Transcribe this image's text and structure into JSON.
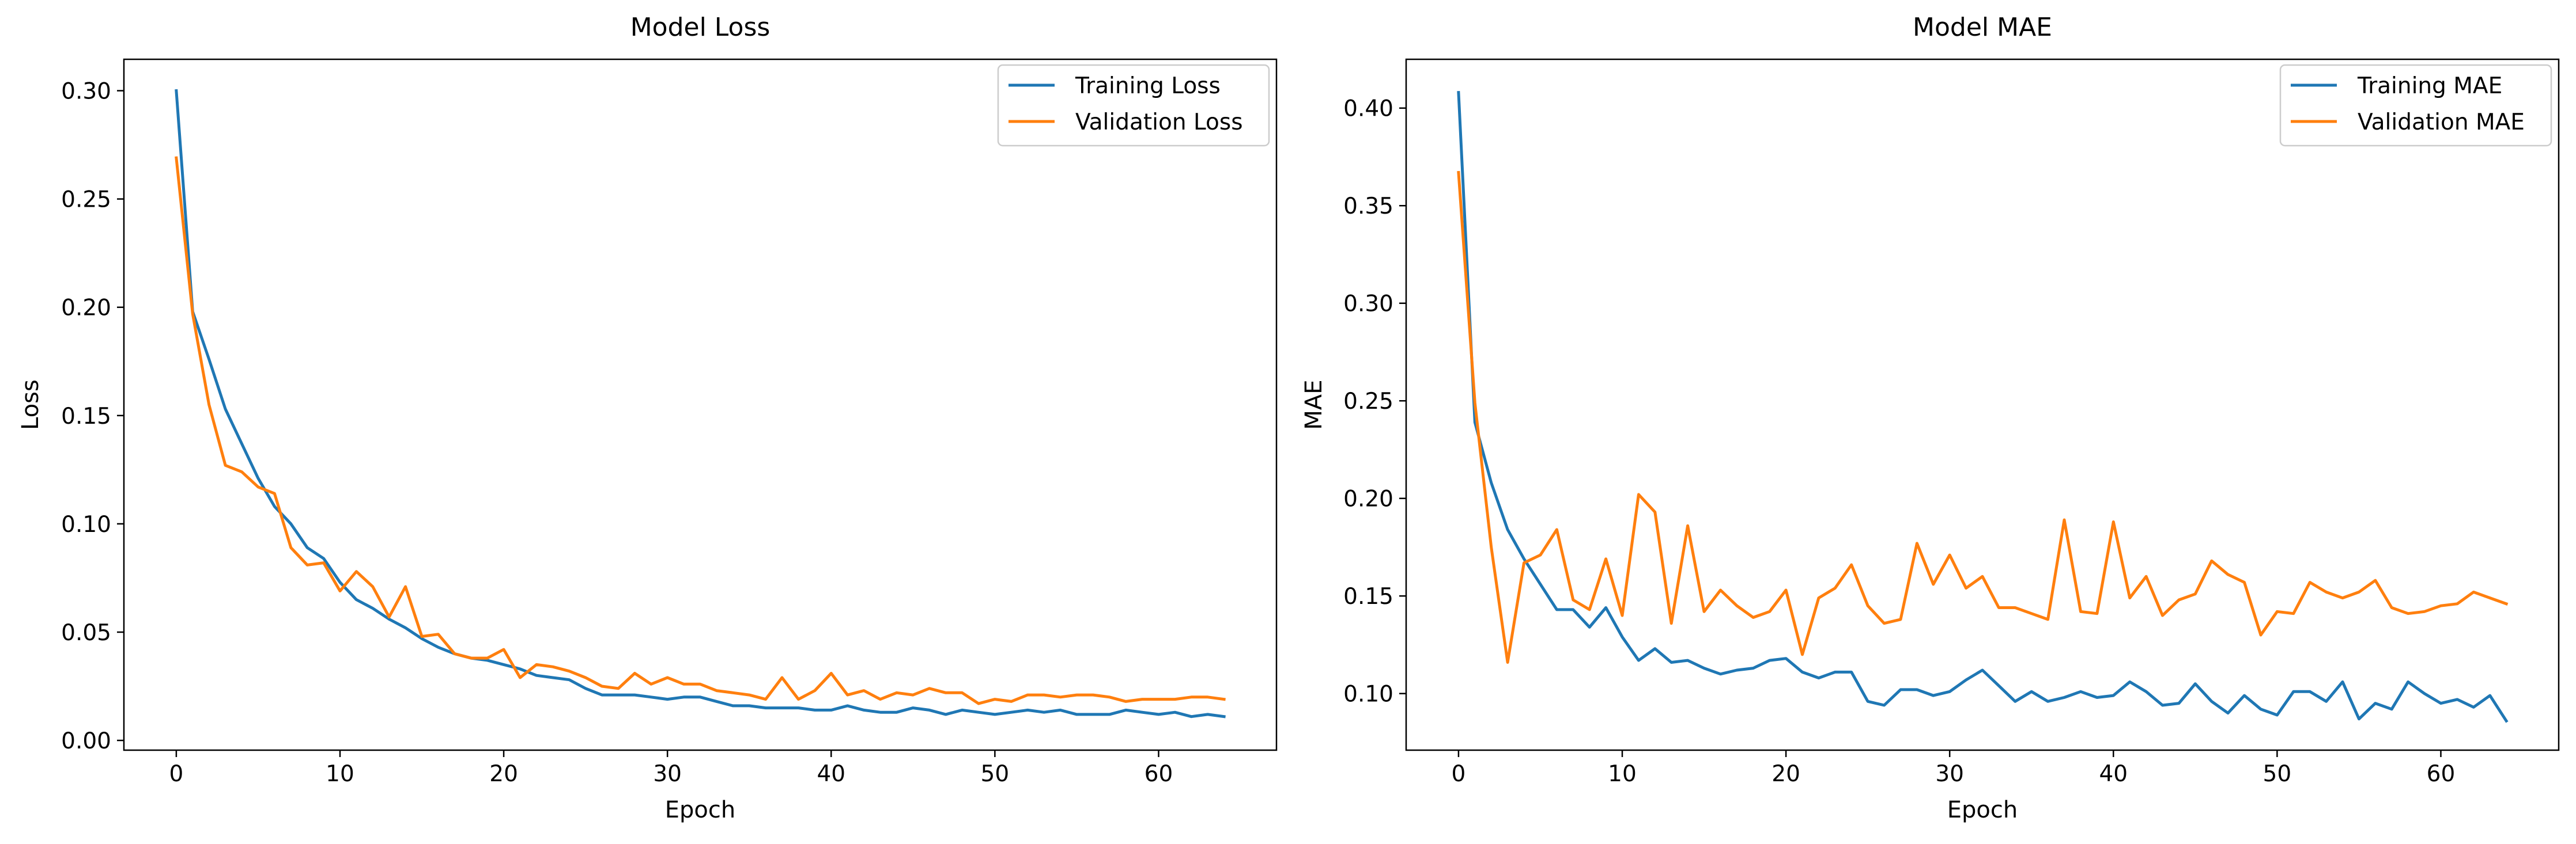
{
  "colors": {
    "training": "#1f77b4",
    "validation": "#ff7f0e"
  },
  "chart_data": [
    {
      "type": "line",
      "title": "Model Loss",
      "xlabel": "Epoch",
      "ylabel": "Loss",
      "xlim": [
        -3.2,
        67.2
      ],
      "ylim": [
        -0.0045,
        0.3145
      ],
      "xticks": [
        0,
        10,
        20,
        30,
        40,
        50,
        60
      ],
      "yticks": [
        0.0,
        0.05,
        0.1,
        0.15,
        0.2,
        0.25,
        0.3
      ],
      "ytick_labels": [
        "0.00",
        "0.05",
        "0.10",
        "0.15",
        "0.20",
        "0.25",
        "0.30"
      ],
      "legend": "top-right",
      "x": [
        0,
        1,
        2,
        3,
        4,
        5,
        6,
        7,
        8,
        9,
        10,
        11,
        12,
        13,
        14,
        15,
        16,
        17,
        18,
        19,
        20,
        21,
        22,
        23,
        24,
        25,
        26,
        27,
        28,
        29,
        30,
        31,
        32,
        33,
        34,
        35,
        36,
        37,
        38,
        39,
        40,
        41,
        42,
        43,
        44,
        45,
        46,
        47,
        48,
        49,
        50,
        51,
        52,
        53,
        54,
        55,
        56,
        57,
        58,
        59,
        60,
        61,
        62,
        63,
        64
      ],
      "series": [
        {
          "name": "Training Loss",
          "values": [
            0.3,
            0.198,
            0.176,
            0.153,
            0.137,
            0.121,
            0.108,
            0.1,
            0.089,
            0.084,
            0.073,
            0.065,
            0.061,
            0.056,
            0.052,
            0.047,
            0.043,
            0.04,
            0.038,
            0.037,
            0.035,
            0.033,
            0.03,
            0.029,
            0.028,
            0.024,
            0.021,
            0.021,
            0.021,
            0.02,
            0.019,
            0.02,
            0.02,
            0.018,
            0.016,
            0.016,
            0.015,
            0.015,
            0.015,
            0.014,
            0.014,
            0.016,
            0.014,
            0.013,
            0.013,
            0.015,
            0.014,
            0.012,
            0.014,
            0.013,
            0.012,
            0.013,
            0.014,
            0.013,
            0.014,
            0.012,
            0.012,
            0.012,
            0.014,
            0.013,
            0.012,
            0.013,
            0.011,
            0.012,
            0.011
          ]
        },
        {
          "name": "Validation Loss",
          "values": [
            0.269,
            0.197,
            0.155,
            0.127,
            0.124,
            0.117,
            0.114,
            0.089,
            0.081,
            0.082,
            0.069,
            0.078,
            0.071,
            0.057,
            0.071,
            0.048,
            0.049,
            0.04,
            0.038,
            0.038,
            0.042,
            0.029,
            0.035,
            0.034,
            0.032,
            0.029,
            0.025,
            0.024,
            0.031,
            0.026,
            0.029,
            0.026,
            0.026,
            0.023,
            0.022,
            0.021,
            0.019,
            0.029,
            0.019,
            0.023,
            0.031,
            0.021,
            0.023,
            0.019,
            0.022,
            0.021,
            0.024,
            0.022,
            0.022,
            0.017,
            0.019,
            0.018,
            0.021,
            0.021,
            0.02,
            0.021,
            0.021,
            0.02,
            0.018,
            0.019,
            0.019,
            0.019,
            0.02,
            0.02,
            0.019
          ]
        }
      ]
    },
    {
      "type": "line",
      "title": "Model MAE",
      "xlabel": "Epoch",
      "ylabel": "MAE",
      "xlim": [
        -3.2,
        67.2
      ],
      "ylim": [
        0.071,
        0.425
      ],
      "xticks": [
        0,
        10,
        20,
        30,
        40,
        50,
        60
      ],
      "yticks": [
        0.1,
        0.15,
        0.2,
        0.25,
        0.3,
        0.35,
        0.4
      ],
      "ytick_labels": [
        "0.10",
        "0.15",
        "0.20",
        "0.25",
        "0.30",
        "0.35",
        "0.40"
      ],
      "legend": "top-right",
      "x": [
        0,
        1,
        2,
        3,
        4,
        5,
        6,
        7,
        8,
        9,
        10,
        11,
        12,
        13,
        14,
        15,
        16,
        17,
        18,
        19,
        20,
        21,
        22,
        23,
        24,
        25,
        26,
        27,
        28,
        29,
        30,
        31,
        32,
        33,
        34,
        35,
        36,
        37,
        38,
        39,
        40,
        41,
        42,
        43,
        44,
        45,
        46,
        47,
        48,
        49,
        50,
        51,
        52,
        53,
        54,
        55,
        56,
        57,
        58,
        59,
        60,
        61,
        62,
        63,
        64
      ],
      "series": [
        {
          "name": "Training MAE",
          "values": [
            0.408,
            0.239,
            0.208,
            0.184,
            0.169,
            0.156,
            0.143,
            0.143,
            0.134,
            0.144,
            0.129,
            0.117,
            0.123,
            0.116,
            0.117,
            0.113,
            0.11,
            0.112,
            0.113,
            0.117,
            0.118,
            0.111,
            0.108,
            0.111,
            0.111,
            0.096,
            0.094,
            0.102,
            0.102,
            0.099,
            0.101,
            0.107,
            0.112,
            0.104,
            0.096,
            0.101,
            0.096,
            0.098,
            0.101,
            0.098,
            0.099,
            0.106,
            0.101,
            0.094,
            0.095,
            0.105,
            0.096,
            0.09,
            0.099,
            0.092,
            0.089,
            0.101,
            0.101,
            0.096,
            0.106,
            0.087,
            0.095,
            0.092,
            0.106,
            0.1,
            0.095,
            0.097,
            0.093,
            0.099,
            0.086
          ]
        },
        {
          "name": "Validation MAE",
          "values": [
            0.367,
            0.249,
            0.175,
            0.116,
            0.167,
            0.171,
            0.184,
            0.148,
            0.143,
            0.169,
            0.14,
            0.202,
            0.193,
            0.136,
            0.186,
            0.142,
            0.153,
            0.145,
            0.139,
            0.142,
            0.153,
            0.12,
            0.149,
            0.154,
            0.166,
            0.145,
            0.136,
            0.138,
            0.177,
            0.156,
            0.171,
            0.154,
            0.16,
            0.144,
            0.144,
            0.141,
            0.138,
            0.189,
            0.142,
            0.141,
            0.188,
            0.149,
            0.16,
            0.14,
            0.148,
            0.151,
            0.168,
            0.161,
            0.157,
            0.13,
            0.142,
            0.141,
            0.157,
            0.152,
            0.149,
            0.152,
            0.158,
            0.144,
            0.141,
            0.142,
            0.145,
            0.146,
            0.152,
            0.149,
            0.146
          ]
        }
      ]
    }
  ]
}
